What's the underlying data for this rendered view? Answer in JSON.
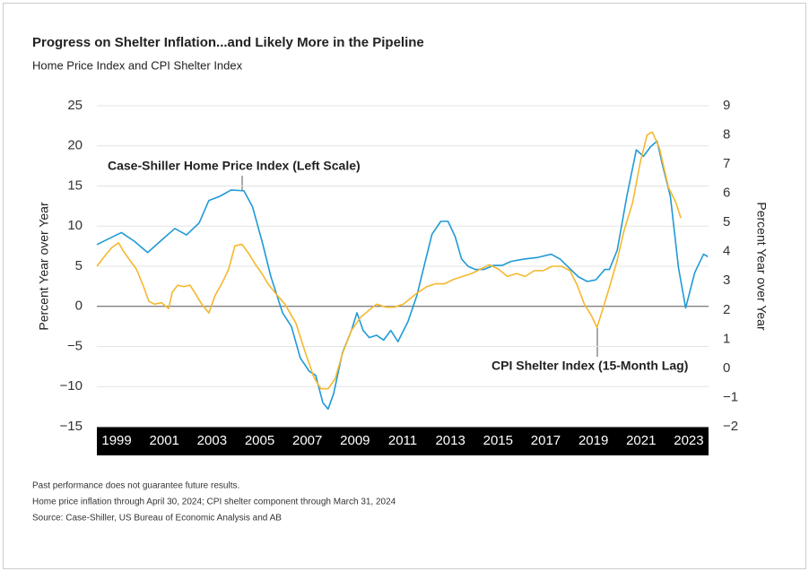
{
  "chart_data": {
    "type": "line",
    "title": "Progress on Shelter Inflation...and Likely More in the Pipeline",
    "subtitle": "Home Price Index and CPI Shelter Index",
    "ylabel": "Percent Year over Year",
    "y2label": "Percent Year over Year",
    "annotations": [
      "Case-Shiller Home Price Index (Left Scale)",
      "CPI Shelter Index (15-Month Lag)"
    ],
    "notes": [
      "Past performance does not guarantee future results.",
      "Home price inflation through April 30, 2024; CPI shelter component through March 31, 2024",
      "Source: Case-Shiller, US Bureau of Economic Analysis and AB"
    ],
    "xlim": [
      1998.67,
      2024.33
    ],
    "xticks": [
      {
        "value": 1999.5,
        "label": "1999"
      },
      {
        "value": 2001.5,
        "label": "2001"
      },
      {
        "value": 2003.5,
        "label": "2003"
      },
      {
        "value": 2005.5,
        "label": "2005"
      },
      {
        "value": 2007.5,
        "label": "2007"
      },
      {
        "value": 2009.5,
        "label": "2009"
      },
      {
        "value": 2011.5,
        "label": "2011"
      },
      {
        "value": 2013.5,
        "label": "2013"
      },
      {
        "value": 2015.5,
        "label": "2015"
      },
      {
        "value": 2017.5,
        "label": "2017"
      },
      {
        "value": 2019.5,
        "label": "2019"
      },
      {
        "value": 2021.5,
        "label": "2021"
      },
      {
        "value": 2023.5,
        "label": "2023"
      }
    ],
    "ylim": [
      -15,
      25
    ],
    "yticks": [
      {
        "value": -15,
        "label": "−15"
      },
      {
        "value": -10,
        "label": "−10"
      },
      {
        "value": -5,
        "label": "−5"
      },
      0,
      5,
      10,
      15,
      20,
      25
    ],
    "y2lim": [
      -2,
      9
    ],
    "y2ticks": [
      {
        "value": -2,
        "label": "−2"
      },
      {
        "value": -1,
        "label": "−1"
      },
      0,
      1,
      2,
      3,
      4,
      5,
      6,
      7,
      8,
      9
    ],
    "grid": true,
    "series": [
      {
        "name": "Case-Shiller Home Price Index",
        "color": "#1f9ad6",
        "x": [
          1998.67,
          1999.7,
          2000.25,
          2000.8,
          2001.4,
          2001.94,
          2002.43,
          2002.96,
          2003.37,
          2003.82,
          2004.3,
          2004.84,
          2005.2,
          2005.6,
          2005.97,
          2006.46,
          2006.83,
          2007.2,
          2007.58,
          2007.85,
          2008.15,
          2008.37,
          2008.6,
          2008.97,
          2009.35,
          2009.58,
          2009.84,
          2010.1,
          2010.4,
          2010.7,
          2011.0,
          2011.3,
          2011.72,
          2012.1,
          2012.47,
          2012.73,
          2013.1,
          2013.4,
          2013.7,
          2013.97,
          2014.24,
          2014.54,
          2014.91,
          2015.3,
          2015.67,
          2016.04,
          2016.6,
          2017.17,
          2017.73,
          2018.1,
          2018.48,
          2018.86,
          2019.24,
          2019.6,
          2019.98,
          2020.17,
          2020.5,
          2020.9,
          2021.3,
          2021.6,
          2021.9,
          2022.17,
          2022.4,
          2022.73,
          2023.07,
          2023.37,
          2023.75,
          2024.12,
          2024.3
        ],
        "values": [
          7.7,
          9.2,
          8.1,
          6.7,
          8.3,
          9.7,
          8.9,
          10.4,
          13.2,
          13.7,
          14.5,
          14.4,
          12.4,
          8.1,
          3.7,
          -0.8,
          -2.5,
          -6.4,
          -8.1,
          -8.6,
          -12,
          -12.8,
          -10.9,
          -5.8,
          -3.0,
          -0.8,
          -3.0,
          -3.9,
          -3.6,
          -4.2,
          -3.0,
          -4.4,
          -1.9,
          1.4,
          5.9,
          9.0,
          10.6,
          10.6,
          8.7,
          5.9,
          5.0,
          4.6,
          4.6,
          5.1,
          5.1,
          5.6,
          5.9,
          6.1,
          6.5,
          5.9,
          4.8,
          3.7,
          3.1,
          3.3,
          4.6,
          4.6,
          7.0,
          13.7,
          19.5,
          18.7,
          19.9,
          20.6,
          17.6,
          13.7,
          4.8,
          -0.2,
          4.2,
          6.5,
          6.2
        ]
      },
      {
        "name": "CPI Shelter Index (15-Month Lag)",
        "color": "#f5b82e",
        "axis": "y2",
        "x": [
          1998.67,
          1999.05,
          1999.31,
          1999.58,
          1999.8,
          2000.06,
          2000.33,
          2000.63,
          2000.85,
          2001.08,
          2001.38,
          2001.68,
          2001.83,
          2002.06,
          2002.32,
          2002.58,
          2002.81,
          2003.07,
          2003.37,
          2003.63,
          2003.94,
          2004.2,
          2004.46,
          2004.76,
          2005.03,
          2005.33,
          2005.59,
          2005.89,
          2006.19,
          2006.56,
          2007.02,
          2007.39,
          2007.77,
          2008.07,
          2008.37,
          2008.67,
          2008.97,
          2009.35,
          2009.73,
          2010.1,
          2010.4,
          2010.78,
          2011.15,
          2011.53,
          2011.83,
          2012.13,
          2012.51,
          2012.88,
          2013.26,
          2013.64,
          2014.01,
          2014.39,
          2014.76,
          2015.14,
          2015.52,
          2015.89,
          2016.27,
          2016.64,
          2017.02,
          2017.4,
          2017.77,
          2018.15,
          2018.52,
          2018.82,
          2019.12,
          2019.42,
          2019.65,
          2019.88,
          2020.18,
          2020.48,
          2020.78,
          2021.15,
          2021.45,
          2021.75,
          2021.97,
          2022.27,
          2022.65,
          2022.95,
          2023.17
        ],
        "values": [
          3.5,
          3.9,
          4.15,
          4.3,
          4.0,
          3.7,
          3.4,
          2.8,
          2.3,
          2.2,
          2.25,
          2.05,
          2.6,
          2.85,
          2.8,
          2.85,
          2.55,
          2.2,
          1.9,
          2.5,
          2.95,
          3.4,
          4.2,
          4.25,
          3.95,
          3.55,
          3.25,
          2.85,
          2.55,
          2.2,
          1.55,
          0.6,
          -0.3,
          -0.7,
          -0.7,
          -0.35,
          0.5,
          1.3,
          1.75,
          2.0,
          2.2,
          2.1,
          2.1,
          2.2,
          2.4,
          2.6,
          2.8,
          2.9,
          2.9,
          3.05,
          3.15,
          3.25,
          3.4,
          3.55,
          3.4,
          3.15,
          3.25,
          3.15,
          3.35,
          3.35,
          3.5,
          3.5,
          3.35,
          2.85,
          2.2,
          1.8,
          1.4,
          2.0,
          2.8,
          3.65,
          4.7,
          5.7,
          7.0,
          8.0,
          8.1,
          7.55,
          6.2,
          5.7,
          5.15
        ]
      }
    ]
  }
}
